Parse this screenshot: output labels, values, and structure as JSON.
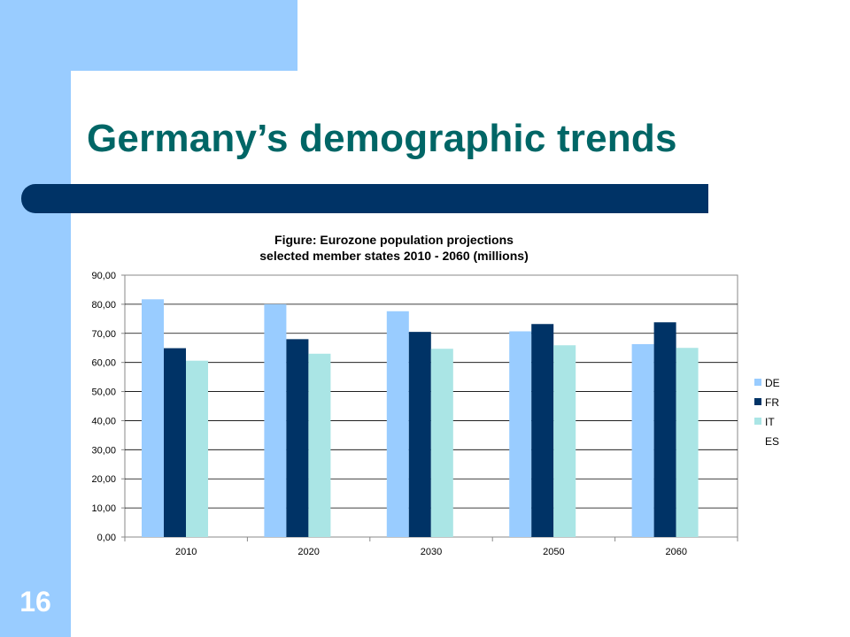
{
  "slide": {
    "title": "Germany’s demographic trends",
    "number": "16"
  },
  "colors": {
    "band": "#99ccff",
    "title_bar": "#003366",
    "title_text": "#006666",
    "DE": "#99ccff",
    "FR": "#003366",
    "IT": "#aae5e5",
    "ES": "#ffffff"
  },
  "chart_data": {
    "type": "bar",
    "title": "Figure: Eurozone population projections",
    "subtitle": "selected member states 2010 - 2060 (millions)",
    "categories": [
      "2010",
      "2020",
      "2030",
      "2050",
      "2060"
    ],
    "series": [
      {
        "name": "DE",
        "values": [
          81.7,
          80.0,
          77.6,
          70.7,
          66.3
        ]
      },
      {
        "name": "FR",
        "values": [
          64.9,
          68.0,
          70.5,
          73.2,
          73.8
        ]
      },
      {
        "name": "IT",
        "values": [
          60.6,
          63.0,
          64.7,
          65.9,
          65.0
        ]
      },
      {
        "name": "ES",
        "values": [
          0,
          0,
          0,
          0,
          0
        ]
      }
    ],
    "ylim": [
      0,
      90
    ],
    "yticks": [
      "0,00",
      "10,00",
      "20,00",
      "30,00",
      "40,00",
      "50,00",
      "60,00",
      "70,00",
      "80,00",
      "90,00"
    ],
    "grid": true,
    "legend_position": "right"
  }
}
